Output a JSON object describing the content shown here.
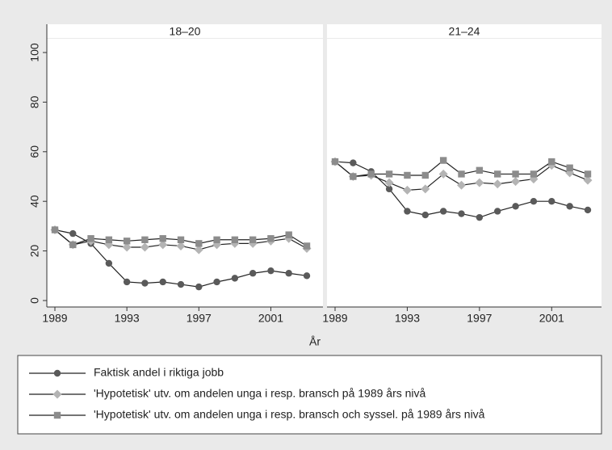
{
  "chart_data": {
    "type": "line",
    "xlabel": "År",
    "x": [
      1989,
      1990,
      1991,
      1992,
      1993,
      1994,
      1995,
      1996,
      1997,
      1998,
      1999,
      2000,
      2001,
      2002,
      2003
    ],
    "xlim": [
      1989,
      2003
    ],
    "xticks": [
      1989,
      1993,
      1997,
      2001
    ],
    "ylim": [
      0,
      100
    ],
    "yticks": [
      0,
      20,
      40,
      60,
      80,
      100
    ],
    "series": [
      {
        "name": "Faktisk andel i riktiga jobb",
        "color": "#5a5a5a",
        "marker": "circle"
      },
      {
        "name": "'Hypotetisk' utv. om andelen unga i resp. bransch på 1989 års nivå",
        "color": "#b4b4b4",
        "marker": "diamond"
      },
      {
        "name": "'Hypotetisk' utv. om andelen unga i resp. bransch och syssel. på 1989 års nivå",
        "color": "#8c8c8c",
        "marker": "square"
      }
    ],
    "panels": [
      {
        "title": "18–20",
        "values": [
          [
            28.5,
            27,
            23,
            15,
            7.5,
            7,
            7.5,
            6.5,
            5.5,
            7.5,
            9,
            11,
            12,
            11,
            10
          ],
          [
            28.5,
            22.5,
            24,
            22.5,
            21.5,
            21.5,
            22.5,
            22,
            20.5,
            22.5,
            23,
            23,
            24,
            25,
            21
          ],
          [
            28.5,
            22.5,
            25,
            24.5,
            24,
            24.5,
            25,
            24.5,
            23,
            24.5,
            24.5,
            24.5,
            25,
            26.5,
            22
          ]
        ]
      },
      {
        "title": "21–24",
        "values": [
          [
            56,
            55.5,
            52,
            45,
            36,
            34.5,
            36,
            35,
            33.5,
            36,
            38,
            40,
            40,
            38,
            36.5
          ],
          [
            56,
            50,
            50.5,
            47.5,
            44.5,
            45,
            51,
            46.5,
            47.5,
            47,
            48,
            49,
            54.5,
            51.5,
            48.5
          ],
          [
            56,
            50,
            51,
            51,
            50.5,
            50.5,
            56.5,
            51,
            52.5,
            51,
            51,
            51,
            56,
            53.5,
            51
          ]
        ]
      }
    ]
  }
}
